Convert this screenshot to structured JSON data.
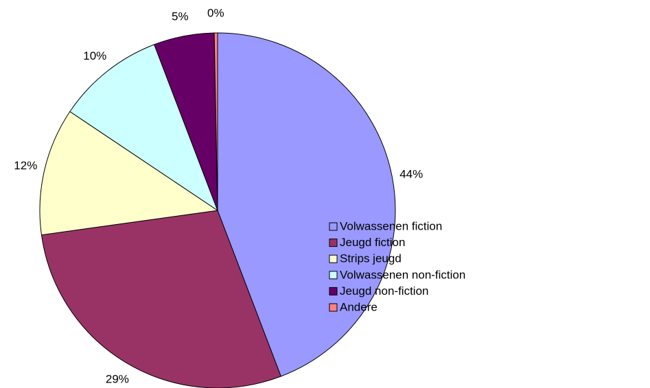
{
  "chart_data": {
    "type": "pie",
    "categories": [
      "Volwassenen fiction",
      "Jeugd fiction",
      "Strips jeugd",
      "Volwassenen non-fiction",
      "Jeugd non-fiction",
      "Andere"
    ],
    "values": [
      44.2,
      28.6,
      11.6,
      9.8,
      5.5,
      0.3
    ],
    "value_labels": [
      "44%",
      "29%",
      "12%",
      "10%",
      "5%",
      "0%"
    ],
    "colors": [
      "#9999ff",
      "#993366",
      "#ffffcc",
      "#ccffff",
      "#660066",
      "#ff8080"
    ],
    "legend": "right"
  }
}
